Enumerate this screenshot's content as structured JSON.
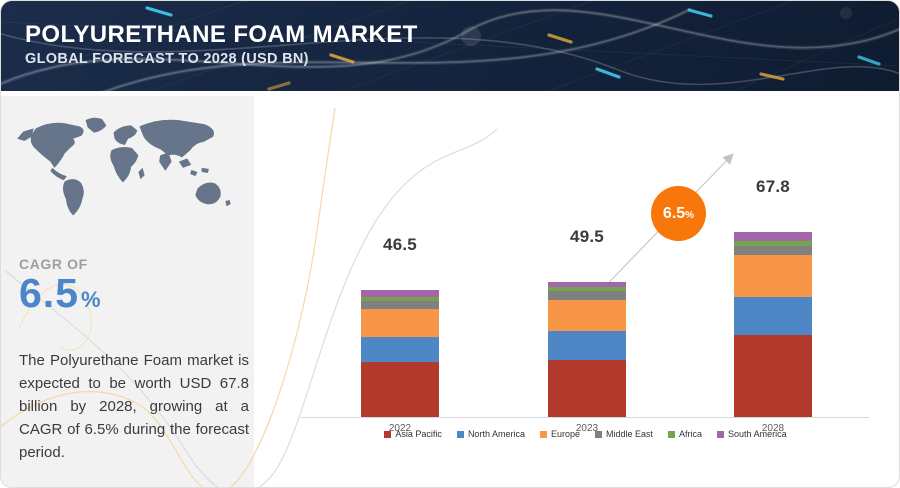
{
  "header": {
    "title": "POLYURETHANE FOAM MARKET",
    "subtitle": "GLOBAL FORECAST TO 2028 (USD BN)"
  },
  "sidebar": {
    "cagr_label": "CAGR OF",
    "cagr_value": "6.5",
    "cagr_unit": "%",
    "description": "The Polyurethane Foam market is expected to be worth USD 67.8 billion by 2028, growing at a CAGR of 6.5% during the forecast period."
  },
  "callout": {
    "value": "6.5",
    "unit": "%"
  },
  "colors": {
    "accent_blue": "#4a86c9",
    "header_bg": "#15253f",
    "sidebar_bg": "#f2f2f2",
    "map_fill": "#66758a",
    "callout_orange": "#f7770b",
    "axis_line": "#d9d9d9"
  },
  "chart_data": {
    "type": "bar",
    "stacked": true,
    "title": "Polyurethane Foam Market, Global Forecast to 2028 (USD BN)",
    "categories": [
      "2022",
      "2023",
      "2028"
    ],
    "totals": [
      46.5,
      49.5,
      67.8
    ],
    "series": [
      {
        "name": "Asia Pacific",
        "color": "#b23a2c",
        "values": [
          20.0,
          21.0,
          30.0
        ]
      },
      {
        "name": "North America",
        "color": "#4f86c6",
        "values": [
          9.5,
          10.5,
          14.0
        ]
      },
      {
        "name": "Europe",
        "color": "#f79646",
        "values": [
          10.0,
          11.5,
          15.5
        ]
      },
      {
        "name": "Middle East",
        "color": "#808080",
        "values": [
          3.0,
          3.0,
          3.3
        ]
      },
      {
        "name": "Africa",
        "color": "#77a24e",
        "values": [
          1.5,
          1.5,
          1.8
        ]
      },
      {
        "name": "South America",
        "color": "#a366a8",
        "values": [
          2.5,
          2.0,
          3.2
        ]
      }
    ],
    "xlabel": "",
    "ylabel": "",
    "grid": false,
    "legend_position": "bottom",
    "annotations": [
      {
        "text": "6.5%",
        "style": "orange-circle-on-arrow-between-2023-and-2028"
      }
    ]
  }
}
